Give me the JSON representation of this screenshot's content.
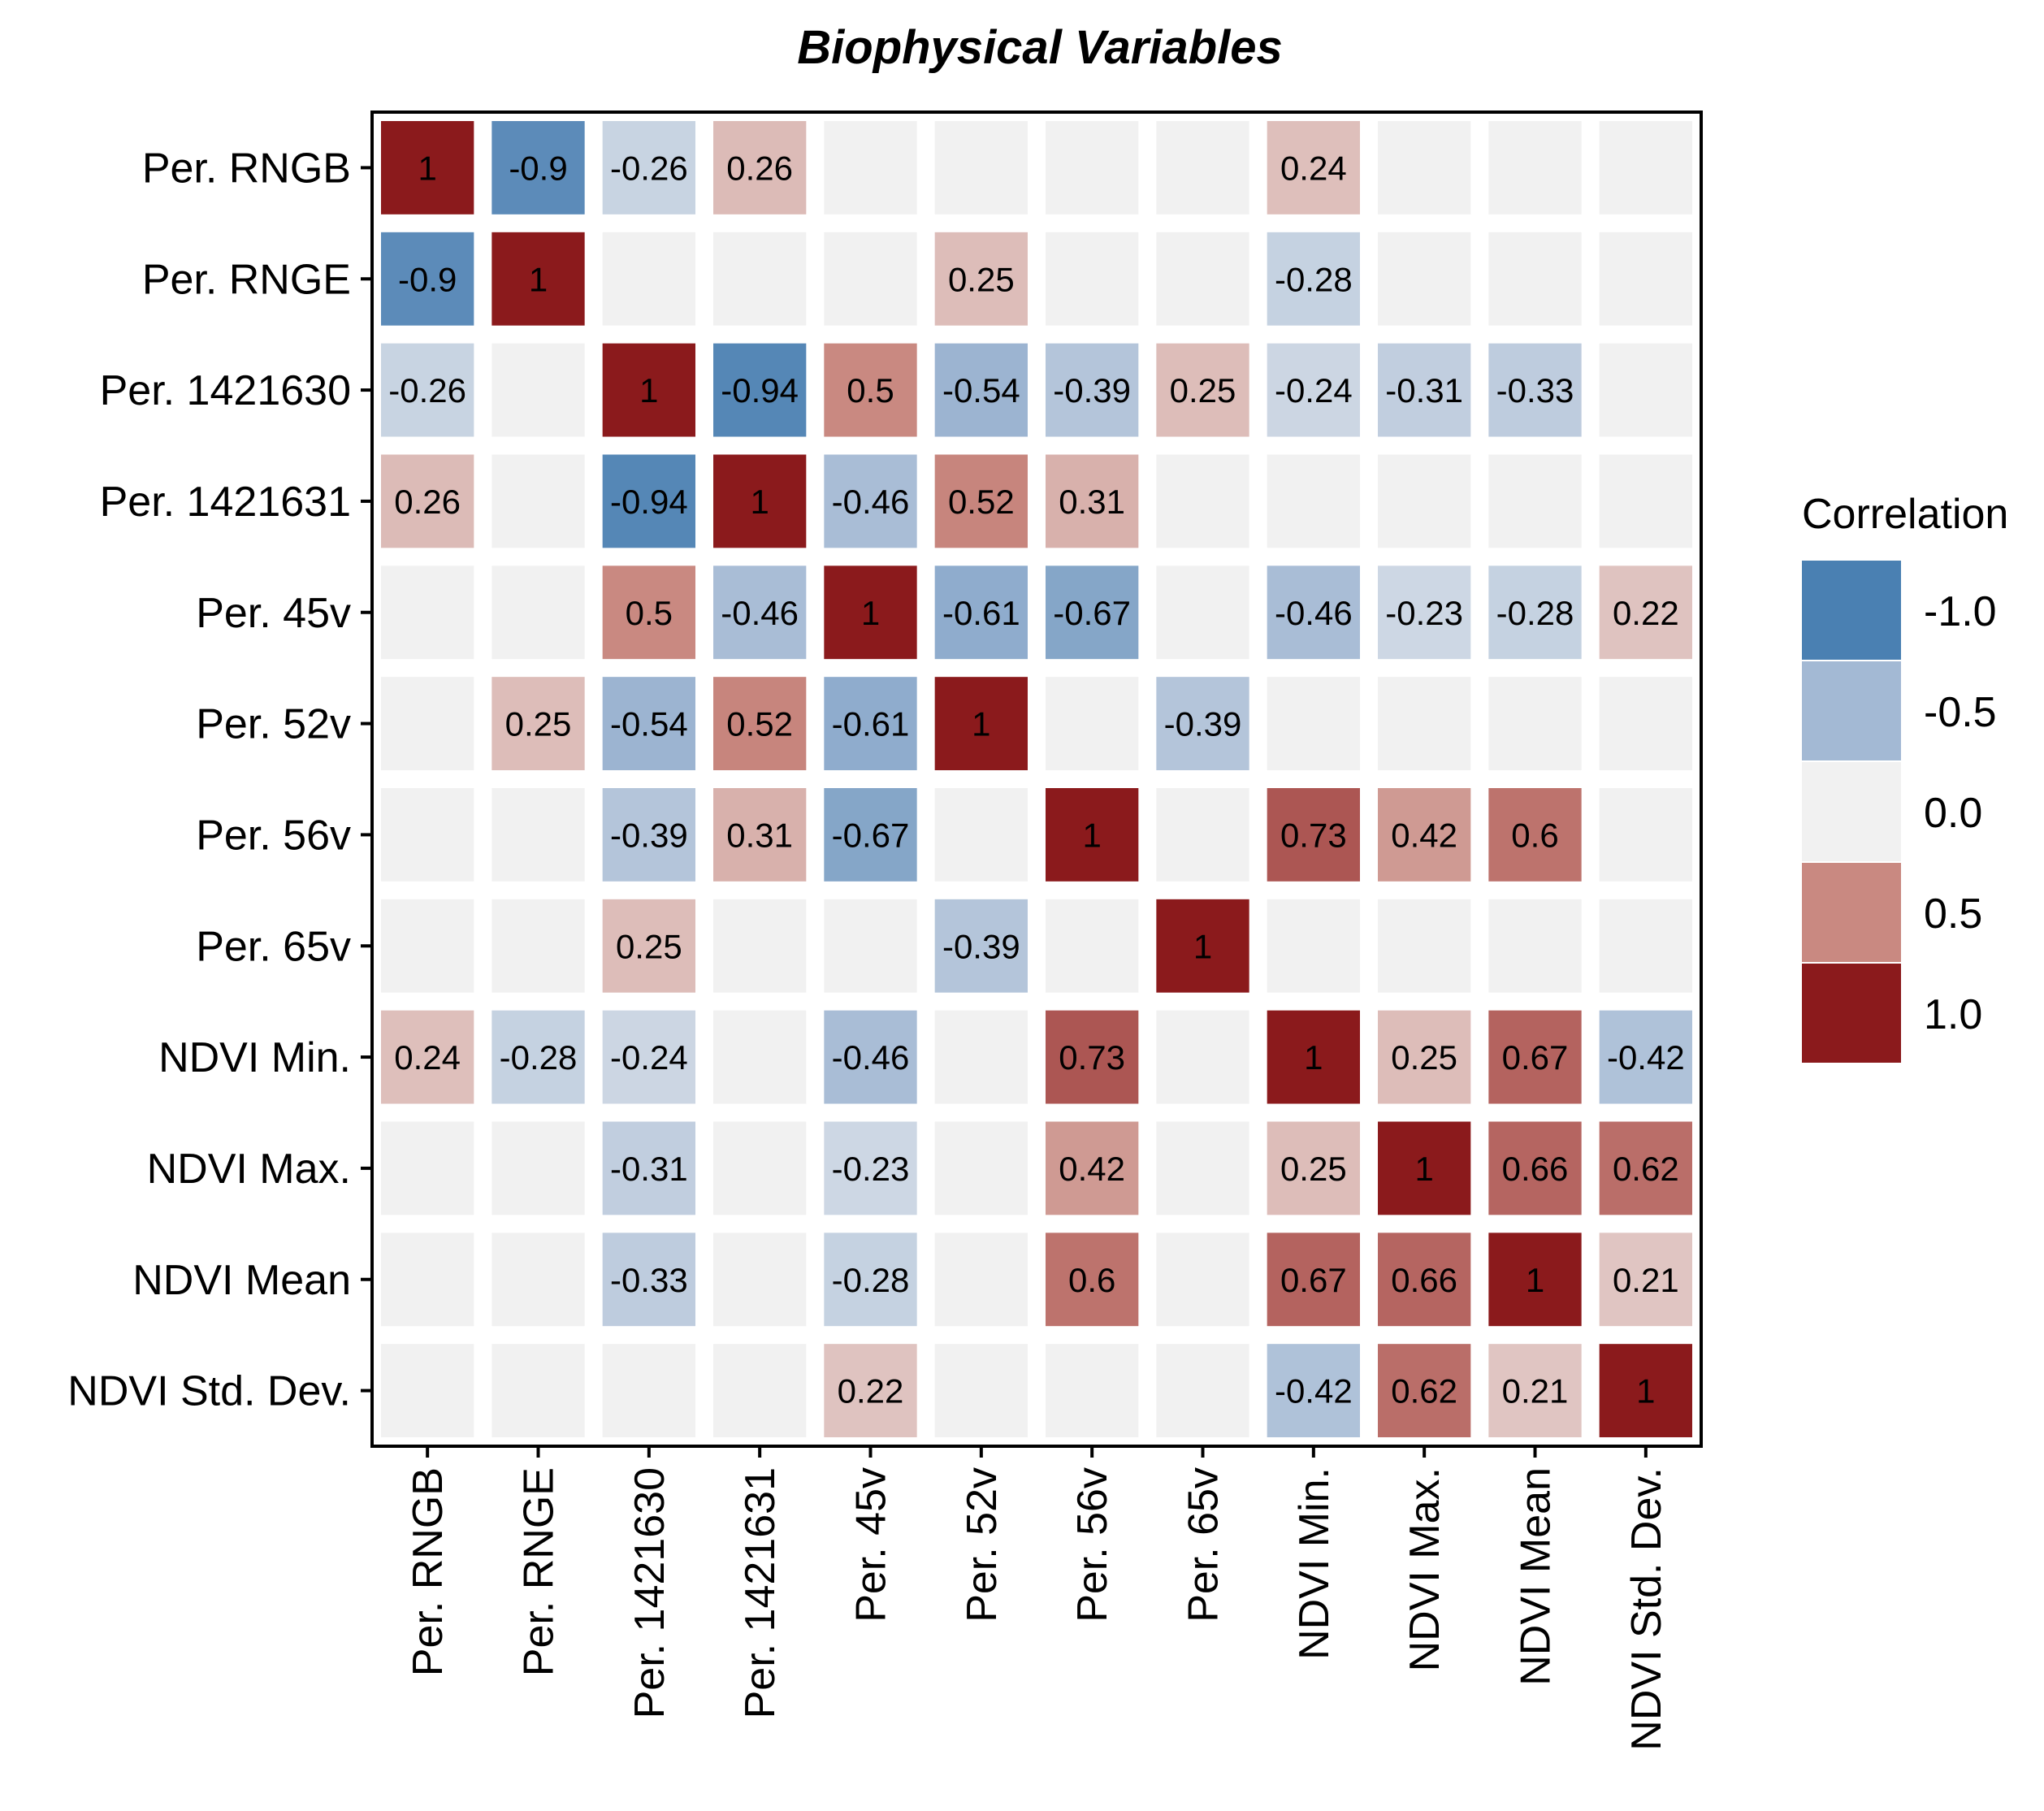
{
  "chart_data": {
    "type": "heatmap",
    "title": "Biophysical Variables",
    "labels": [
      "Per. RNGB",
      "Per. RNGE",
      "Per. 1421630",
      "Per. 1421631",
      "Per. 45v",
      "Per. 52v",
      "Per. 56v",
      "Per. 65v",
      "NDVI Min.",
      "NDVI Max.",
      "NDVI Mean",
      "NDVI Std. Dev."
    ],
    "matrix": [
      [
        1,
        -0.9,
        -0.26,
        0.26,
        null,
        null,
        null,
        null,
        0.24,
        null,
        null,
        null
      ],
      [
        -0.9,
        1,
        null,
        null,
        null,
        0.25,
        null,
        null,
        -0.28,
        null,
        null,
        null
      ],
      [
        -0.26,
        null,
        1,
        -0.94,
        0.5,
        -0.54,
        -0.39,
        0.25,
        -0.24,
        -0.31,
        -0.33,
        null
      ],
      [
        0.26,
        null,
        -0.94,
        1,
        -0.46,
        0.52,
        0.31,
        null,
        null,
        null,
        null,
        null
      ],
      [
        null,
        null,
        0.5,
        -0.46,
        1,
        -0.61,
        -0.67,
        null,
        -0.46,
        -0.23,
        -0.28,
        0.22
      ],
      [
        null,
        0.25,
        -0.54,
        0.52,
        -0.61,
        1,
        null,
        -0.39,
        null,
        null,
        null,
        null
      ],
      [
        null,
        null,
        -0.39,
        0.31,
        -0.67,
        null,
        1,
        null,
        0.73,
        0.42,
        0.6,
        null
      ],
      [
        null,
        null,
        0.25,
        null,
        null,
        -0.39,
        null,
        1,
        null,
        null,
        null,
        null
      ],
      [
        0.24,
        -0.28,
        -0.24,
        null,
        -0.46,
        null,
        0.73,
        null,
        1,
        0.25,
        0.67,
        -0.42
      ],
      [
        null,
        null,
        -0.31,
        null,
        -0.23,
        null,
        0.42,
        null,
        0.25,
        1,
        0.66,
        0.62
      ],
      [
        null,
        null,
        -0.33,
        null,
        -0.28,
        null,
        0.6,
        null,
        0.67,
        0.66,
        1,
        0.21
      ],
      [
        null,
        null,
        null,
        null,
        0.22,
        null,
        null,
        null,
        -0.42,
        0.62,
        0.21,
        1
      ]
    ],
    "legend": {
      "title": "Correlation",
      "placement": "right",
      "bins": [
        {
          "label": "-1.0",
          "color": "#4a80b2"
        },
        {
          "label": "-0.5",
          "color": "#a3b9d4"
        },
        {
          "label": "0.0",
          "color": "#f1f1f1"
        },
        {
          "label": "0.5",
          "color": "#c98981"
        },
        {
          "label": "1.0",
          "color": "#8b1a1c"
        }
      ]
    },
    "empty_color": "#f1f1f1",
    "range": [
      -1,
      1
    ]
  }
}
